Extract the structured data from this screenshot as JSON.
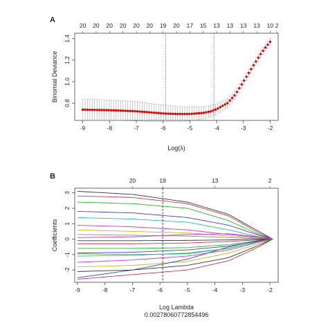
{
  "chart_data": [
    {
      "panel_label": "A",
      "type": "scatter",
      "xlabel": "Log(λ)",
      "ylabel": "Binomial Deviance",
      "xlim": [
        -9.3,
        -1.7
      ],
      "ylim": [
        0.64,
        1.45
      ],
      "x_ticks": [
        "-9",
        "-8",
        "-7",
        "-6",
        "-5",
        "-4",
        "-3",
        "-2"
      ],
      "x_tick_values": [
        -9,
        -8,
        -7,
        -6,
        -5,
        -4,
        -3,
        -2
      ],
      "y_ticks": [
        "0.8",
        "1.0",
        "1.2",
        "1.4"
      ],
      "y_tick_values": [
        0.8,
        1.0,
        1.2,
        1.4
      ],
      "top_labels": [
        "20",
        "20",
        "20",
        "20",
        "20",
        "20",
        "19",
        "20",
        "17",
        "15",
        "13",
        "13",
        "13",
        "13",
        "10",
        "2"
      ],
      "top_label_x": [
        -9,
        -8.5,
        -8,
        -7.5,
        -7,
        -6.5,
        -6,
        -5.5,
        -5,
        -4.5,
        -4,
        -3.5,
        -3,
        -2.5,
        -2,
        -1.75
      ],
      "vlines": [
        -5.9,
        -4.1
      ],
      "curve_knots": {
        "x": [
          -9,
          -8,
          -7,
          -6.5,
          -6,
          -5.5,
          -5,
          -4.5,
          -4.2,
          -4,
          -3.6,
          -3.3,
          -3,
          -2.7,
          -2.4,
          -2.2,
          -2
        ],
        "y": [
          0.74,
          0.735,
          0.725,
          0.715,
          0.705,
          0.7,
          0.7,
          0.71,
          0.725,
          0.745,
          0.8,
          0.88,
          1.0,
          1.12,
          1.24,
          1.31,
          1.37
        ]
      },
      "errorbar_halfwidth": {
        "x": [
          -9,
          -7,
          -5,
          -4,
          -3,
          -2
        ],
        "w": [
          0.1,
          0.09,
          0.065,
          0.05,
          0.035,
          0.03
        ]
      }
    },
    {
      "panel_label": "B",
      "type": "line",
      "xlabel": "Log Lambda",
      "subtitle": "0.00278060772854496",
      "ylabel": "Coefficients",
      "xlim": [
        -9.1,
        -1.7
      ],
      "ylim": [
        -2.8,
        3.3
      ],
      "x_ticks": [
        "-9",
        "-8",
        "-7",
        "-6",
        "-5",
        "-4",
        "-3",
        "-2"
      ],
      "x_tick_values": [
        -9,
        -8,
        -7,
        -6,
        -5,
        -4,
        -3,
        -2
      ],
      "y_ticks": [
        "-2",
        "-1",
        "0",
        "1",
        "2",
        "3"
      ],
      "y_tick_values": [
        -2,
        -1,
        0,
        1,
        2,
        3
      ],
      "top_labels": [
        "20",
        "19",
        "13",
        "2"
      ],
      "top_label_x": [
        -7,
        -5.9,
        -4,
        -2
      ],
      "vline": -5.9,
      "series": [
        {
          "color": "#333333",
          "values": [
            3.1,
            2.9,
            2.4,
            1.6,
            0.5,
            0.0
          ]
        },
        {
          "color": "#cc3355",
          "values": [
            2.8,
            2.7,
            2.3,
            1.5,
            0.4,
            0.0
          ]
        },
        {
          "color": "#22bb22",
          "values": [
            2.4,
            2.3,
            2.0,
            1.2,
            0.3,
            0.0
          ]
        },
        {
          "color": "#3344cc",
          "values": [
            1.8,
            1.7,
            1.4,
            0.9,
            0.25,
            0.0
          ]
        },
        {
          "color": "#22bbbb",
          "values": [
            1.4,
            1.3,
            1.1,
            0.6,
            0.15,
            0.0
          ]
        },
        {
          "color": "#cc33cc",
          "values": [
            0.9,
            0.8,
            0.6,
            0.3,
            0.1,
            0.0
          ]
        },
        {
          "color": "#bbbb22",
          "values": [
            0.6,
            0.5,
            0.4,
            0.2,
            0.05,
            0.0
          ]
        },
        {
          "color": "#888888",
          "values": [
            0.3,
            0.25,
            0.2,
            0.1,
            0.03,
            0.0
          ]
        },
        {
          "color": "#333333",
          "values": [
            -0.1,
            -0.1,
            -0.08,
            -0.05,
            0.0,
            0.0
          ]
        },
        {
          "color": "#cc3355",
          "values": [
            -0.3,
            -0.3,
            -0.25,
            -0.15,
            -0.05,
            0.0
          ]
        },
        {
          "color": "#22bb22",
          "values": [
            -0.6,
            -0.6,
            -0.55,
            -0.35,
            -0.1,
            0.0
          ]
        },
        {
          "color": "#3344cc",
          "values": [
            -0.9,
            -0.85,
            -0.7,
            -0.45,
            -0.12,
            0.0
          ]
        },
        {
          "color": "#22bbbb",
          "values": [
            -1.1,
            -1.05,
            -0.9,
            -0.6,
            -0.15,
            0.0
          ]
        },
        {
          "color": "#cc33cc",
          "values": [
            -1.5,
            -1.35,
            -1.1,
            -0.7,
            -0.2,
            0.0
          ]
        },
        {
          "color": "#bbbb22",
          "values": [
            -1.8,
            -1.7,
            -1.45,
            -0.9,
            -0.3,
            0.0
          ]
        },
        {
          "color": "#333333",
          "values": [
            -2.1,
            -2.0,
            -1.7,
            -1.2,
            -0.4,
            0.0
          ]
        },
        {
          "color": "#cc3355",
          "values": [
            -2.6,
            -2.3,
            -2.0,
            -1.4,
            -0.5,
            0.0
          ]
        },
        {
          "color": "#3344cc",
          "values": [
            -2.5,
            -2.0,
            -1.3,
            -0.5,
            -0.08,
            0.0
          ]
        },
        {
          "color": "#22bb22",
          "values": [
            -0.95,
            -1.0,
            -0.95,
            -0.6,
            -0.15,
            0.0
          ]
        },
        {
          "color": "#cc33cc",
          "values": [
            0.1,
            0.15,
            0.3,
            0.35,
            0.15,
            0.0
          ]
        }
      ],
      "series_x": [
        -9,
        -7,
        -5,
        -3.5,
        -2.4,
        -1.9
      ]
    }
  ]
}
